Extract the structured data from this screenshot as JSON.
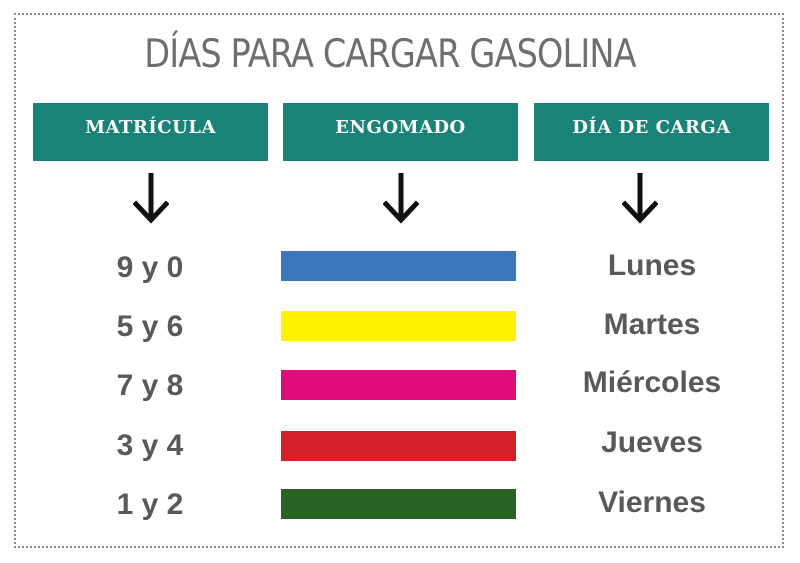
{
  "title": "DÍAS PARA CARGAR GASOLINA",
  "headers": {
    "plate": "MATRÍCULA",
    "sticker": "ENGOMADO",
    "day": "DÍA DE CARGA"
  },
  "colors": {
    "header_bg": "#1a8378",
    "text": "#58595b"
  },
  "rows": [
    {
      "plate": "9 y 0",
      "color": "#3c76be",
      "day": "Lunes"
    },
    {
      "plate": "5 y 6",
      "color": "#fff200",
      "day": "Martes"
    },
    {
      "plate": "7 y 8",
      "color": "#e20b7a",
      "day": "Miércoles"
    },
    {
      "plate": "3 y 4",
      "color": "#d42027",
      "day": "Jueves"
    },
    {
      "plate": "1 y 2",
      "color": "#2a6424",
      "day": "Viernes"
    }
  ]
}
